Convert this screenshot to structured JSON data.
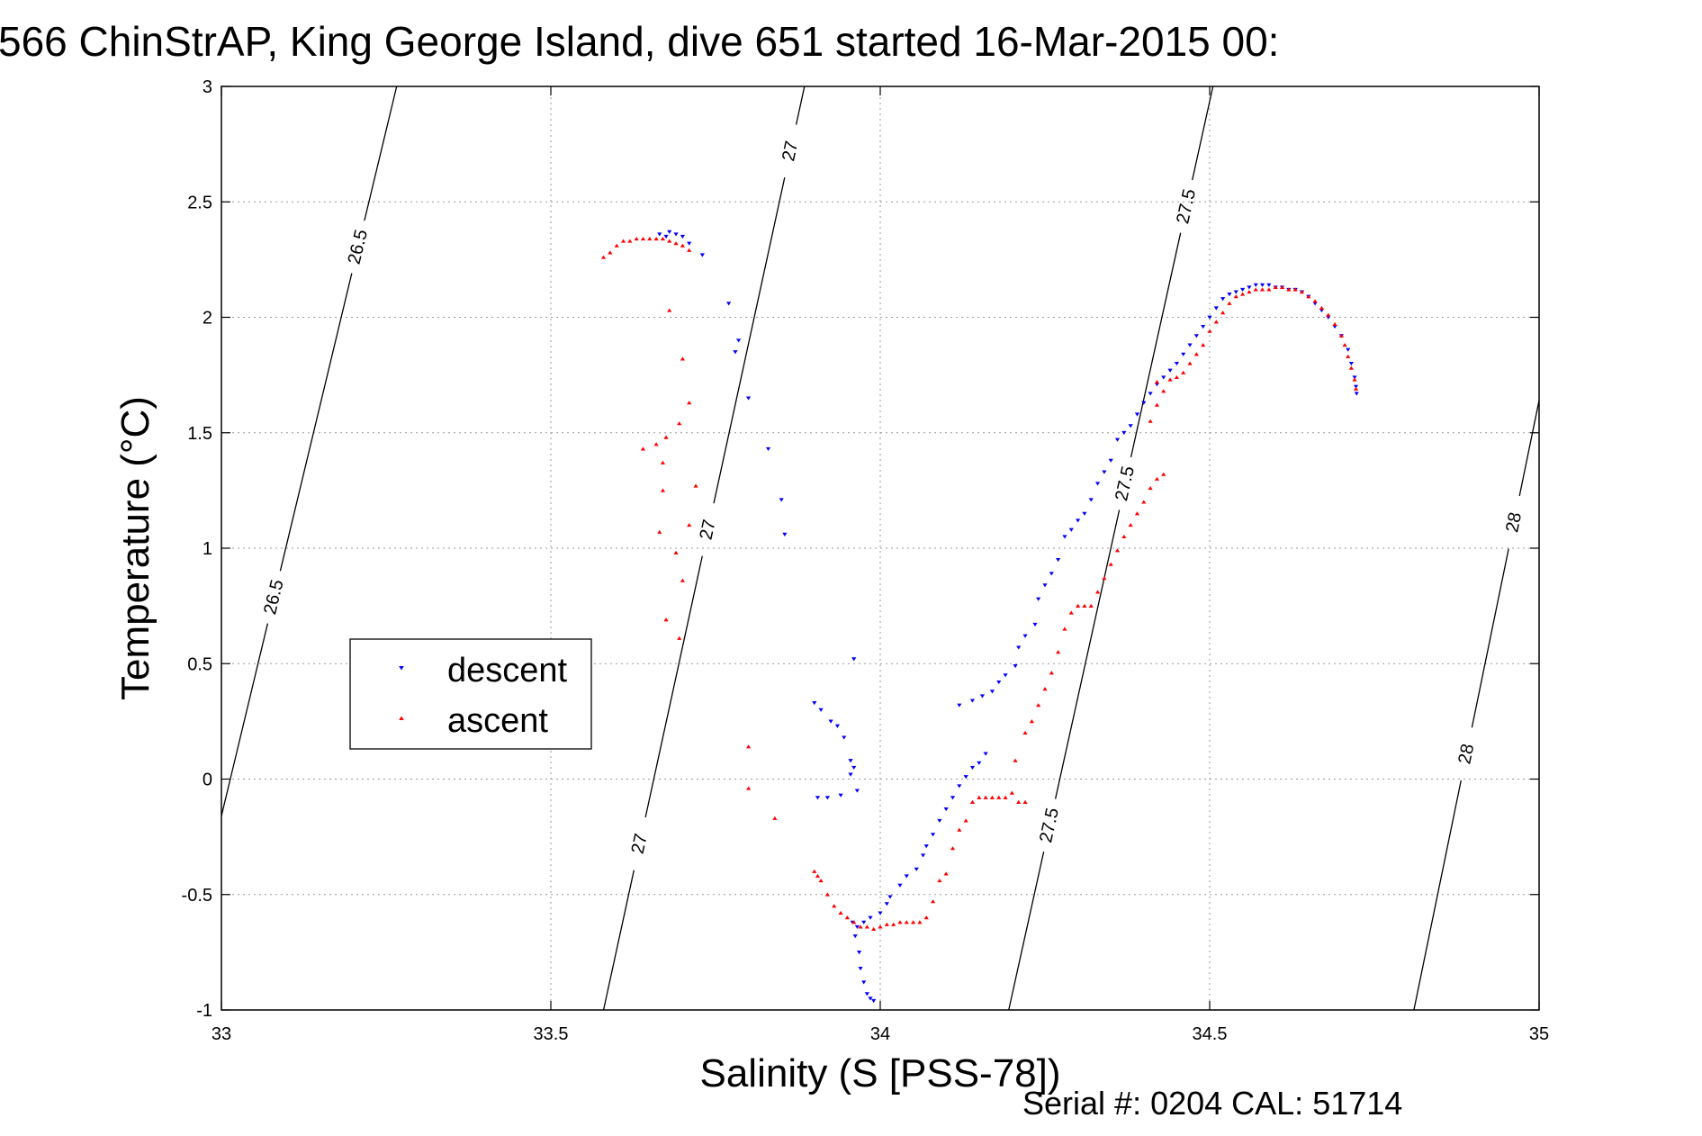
{
  "chart_data": {
    "type": "scatter",
    "title": "566 ChinStrAP, King George Island, dive 651 started 16-Mar-2015 00:",
    "xlabel": "Salinity (S [PSS-78])",
    "ylabel": "Temperature (°C)",
    "xlim": [
      33,
      35
    ],
    "ylim": [
      -1,
      3
    ],
    "x_ticks": [
      "33",
      "33.5",
      "34",
      "34.5",
      "35"
    ],
    "y_ticks": [
      "-1",
      "-0.5",
      "0",
      "0.5",
      "1",
      "1.5",
      "2",
      "2.5",
      "3"
    ],
    "grid": true,
    "legend_position": "left",
    "footer": "Serial #: 0204  CAL: 51714",
    "isopycnals": [
      {
        "label": "26.5",
        "start": [
          33.0,
          -0.16
        ],
        "end": [
          33.266,
          3.0
        ]
      },
      {
        "label": "27",
        "start": [
          33.58,
          -1.0
        ],
        "end": [
          33.885,
          3.0
        ]
      },
      {
        "label": "27.5",
        "start": [
          34.195,
          -1.0
        ],
        "end": [
          34.505,
          3.0
        ]
      },
      {
        "label": "28",
        "start": [
          34.81,
          -1.0
        ],
        "end": [
          35.0,
          1.64
        ]
      }
    ],
    "series": [
      {
        "name": "descent",
        "color": "#0000ff",
        "marker": "triangle-down",
        "points": [
          [
            33.99,
            -0.96
          ],
          [
            33.985,
            -0.95
          ],
          [
            33.98,
            -0.93
          ],
          [
            33.975,
            -0.88
          ],
          [
            33.97,
            -0.82
          ],
          [
            33.968,
            -0.75
          ],
          [
            33.962,
            -0.68
          ],
          [
            33.958,
            -0.62
          ],
          [
            33.965,
            -0.64
          ],
          [
            33.975,
            -0.62
          ],
          [
            33.985,
            -0.6
          ],
          [
            34.0,
            -0.58
          ],
          [
            34.01,
            -0.54
          ],
          [
            34.015,
            -0.51
          ],
          [
            34.03,
            -0.46
          ],
          [
            34.04,
            -0.42
          ],
          [
            34.055,
            -0.39
          ],
          [
            34.065,
            -0.33
          ],
          [
            34.07,
            -0.29
          ],
          [
            34.08,
            -0.24
          ],
          [
            34.09,
            -0.18
          ],
          [
            34.1,
            -0.13
          ],
          [
            34.11,
            -0.08
          ],
          [
            34.12,
            -0.03
          ],
          [
            34.13,
            0.01
          ],
          [
            34.14,
            0.05
          ],
          [
            34.15,
            0.07
          ],
          [
            34.16,
            0.11
          ],
          [
            34.12,
            0.32
          ],
          [
            34.14,
            0.34
          ],
          [
            34.155,
            0.36
          ],
          [
            34.17,
            0.38
          ],
          [
            34.18,
            0.42
          ],
          [
            34.19,
            0.45
          ],
          [
            34.205,
            0.49
          ],
          [
            34.21,
            0.57
          ],
          [
            34.22,
            0.62
          ],
          [
            34.235,
            0.67
          ],
          [
            34.24,
            0.78
          ],
          [
            34.25,
            0.84
          ],
          [
            34.26,
            0.89
          ],
          [
            34.27,
            0.95
          ],
          [
            34.28,
            1.05
          ],
          [
            34.29,
            1.08
          ],
          [
            34.3,
            1.12
          ],
          [
            34.31,
            1.15
          ],
          [
            34.32,
            1.21
          ],
          [
            34.33,
            1.28
          ],
          [
            34.34,
            1.33
          ],
          [
            34.35,
            1.38
          ],
          [
            34.36,
            1.47
          ],
          [
            34.37,
            1.5
          ],
          [
            34.38,
            1.53
          ],
          [
            34.39,
            1.58
          ],
          [
            34.4,
            1.63
          ],
          [
            34.41,
            1.67
          ],
          [
            34.42,
            1.71
          ],
          [
            34.43,
            1.74
          ],
          [
            34.44,
            1.77
          ],
          [
            34.45,
            1.8
          ],
          [
            34.46,
            1.84
          ],
          [
            34.47,
            1.88
          ],
          [
            34.48,
            1.92
          ],
          [
            34.49,
            1.96
          ],
          [
            34.5,
            2.0
          ],
          [
            34.51,
            2.04
          ],
          [
            34.52,
            2.08
          ],
          [
            34.53,
            2.1
          ],
          [
            34.54,
            2.11
          ],
          [
            34.55,
            2.12
          ],
          [
            34.56,
            2.13
          ],
          [
            34.57,
            2.14
          ],
          [
            34.58,
            2.14
          ],
          [
            34.59,
            2.14
          ],
          [
            34.6,
            2.13
          ],
          [
            34.61,
            2.13
          ],
          [
            34.62,
            2.12
          ],
          [
            34.63,
            2.12
          ],
          [
            34.64,
            2.11
          ],
          [
            34.65,
            2.09
          ],
          [
            34.66,
            2.06
          ],
          [
            34.67,
            2.03
          ],
          [
            34.68,
            2.0
          ],
          [
            34.69,
            1.96
          ],
          [
            34.7,
            1.92
          ],
          [
            34.71,
            1.86
          ],
          [
            34.715,
            1.8
          ],
          [
            34.72,
            1.74
          ],
          [
            34.722,
            1.7
          ],
          [
            34.723,
            1.67
          ],
          [
            33.71,
            2.32
          ],
          [
            33.7,
            2.35
          ],
          [
            33.69,
            2.36
          ],
          [
            33.68,
            2.37
          ],
          [
            33.675,
            2.35
          ],
          [
            33.665,
            2.36
          ],
          [
            33.73,
            2.27
          ],
          [
            33.77,
            2.06
          ],
          [
            33.785,
            1.9
          ],
          [
            33.78,
            1.85
          ],
          [
            33.8,
            1.65
          ],
          [
            33.83,
            1.43
          ],
          [
            33.85,
            1.21
          ],
          [
            33.855,
            1.06
          ],
          [
            33.96,
            0.52
          ],
          [
            33.9,
            0.33
          ],
          [
            33.91,
            0.3
          ],
          [
            33.925,
            0.25
          ],
          [
            33.935,
            0.23
          ],
          [
            33.945,
            0.18
          ],
          [
            33.955,
            0.08
          ],
          [
            33.96,
            0.05
          ],
          [
            33.965,
            -0.05
          ],
          [
            33.94,
            -0.07
          ],
          [
            33.92,
            -0.08
          ],
          [
            33.905,
            -0.08
          ],
          [
            33.955,
            0.02
          ]
        ]
      },
      {
        "name": "ascent",
        "color": "#ff0000",
        "marker": "triangle-up",
        "points": [
          [
            33.58,
            2.26
          ],
          [
            33.59,
            2.28
          ],
          [
            33.6,
            2.31
          ],
          [
            33.61,
            2.33
          ],
          [
            33.62,
            2.33
          ],
          [
            33.63,
            2.34
          ],
          [
            33.64,
            2.34
          ],
          [
            33.65,
            2.34
          ],
          [
            33.66,
            2.34
          ],
          [
            33.67,
            2.34
          ],
          [
            33.68,
            2.33
          ],
          [
            33.69,
            2.32
          ],
          [
            33.7,
            2.31
          ],
          [
            33.71,
            2.29
          ],
          [
            33.64,
            1.43
          ],
          [
            33.66,
            1.45
          ],
          [
            33.67,
            1.37
          ],
          [
            33.675,
            1.48
          ],
          [
            33.68,
            2.03
          ],
          [
            33.695,
            1.54
          ],
          [
            33.7,
            1.82
          ],
          [
            33.71,
            1.63
          ],
          [
            33.72,
            1.27
          ],
          [
            33.71,
            1.1
          ],
          [
            33.67,
            1.25
          ],
          [
            33.665,
            1.07
          ],
          [
            33.69,
            0.98
          ],
          [
            33.7,
            0.86
          ],
          [
            33.675,
            0.69
          ],
          [
            33.695,
            0.61
          ],
          [
            33.8,
            0.14
          ],
          [
            33.8,
            -0.04
          ],
          [
            33.84,
            -0.17
          ],
          [
            33.9,
            -0.4
          ],
          [
            33.905,
            -0.42
          ],
          [
            33.91,
            -0.44
          ],
          [
            33.92,
            -0.5
          ],
          [
            33.93,
            -0.55
          ],
          [
            33.94,
            -0.58
          ],
          [
            33.95,
            -0.6
          ],
          [
            33.96,
            -0.62
          ],
          [
            33.97,
            -0.64
          ],
          [
            33.98,
            -0.64
          ],
          [
            33.99,
            -0.65
          ],
          [
            34.0,
            -0.64
          ],
          [
            34.01,
            -0.63
          ],
          [
            34.02,
            -0.63
          ],
          [
            34.03,
            -0.62
          ],
          [
            34.04,
            -0.62
          ],
          [
            34.05,
            -0.62
          ],
          [
            34.06,
            -0.62
          ],
          [
            34.07,
            -0.6
          ],
          [
            34.08,
            -0.53
          ],
          [
            34.09,
            -0.44
          ],
          [
            34.1,
            -0.41
          ],
          [
            34.11,
            -0.3
          ],
          [
            34.12,
            -0.22
          ],
          [
            34.13,
            -0.18
          ],
          [
            34.14,
            -0.1
          ],
          [
            34.15,
            -0.08
          ],
          [
            34.16,
            -0.08
          ],
          [
            34.17,
            -0.08
          ],
          [
            34.18,
            -0.08
          ],
          [
            34.19,
            -0.08
          ],
          [
            34.2,
            -0.06
          ],
          [
            34.21,
            -0.1
          ],
          [
            34.22,
            -0.1
          ],
          [
            34.205,
            0.08
          ],
          [
            34.22,
            0.2
          ],
          [
            34.23,
            0.25
          ],
          [
            34.24,
            0.32
          ],
          [
            34.25,
            0.39
          ],
          [
            34.26,
            0.46
          ],
          [
            34.27,
            0.55
          ],
          [
            34.28,
            0.65
          ],
          [
            34.29,
            0.72
          ],
          [
            34.3,
            0.75
          ],
          [
            34.31,
            0.75
          ],
          [
            34.32,
            0.75
          ],
          [
            34.33,
            0.81
          ],
          [
            34.34,
            0.87
          ],
          [
            34.35,
            0.93
          ],
          [
            34.36,
            0.99
          ],
          [
            34.37,
            1.05
          ],
          [
            34.38,
            1.1
          ],
          [
            34.39,
            1.15
          ],
          [
            34.4,
            1.2
          ],
          [
            34.41,
            1.26
          ],
          [
            34.42,
            1.3
          ],
          [
            34.43,
            1.32
          ],
          [
            34.41,
            1.55
          ],
          [
            34.42,
            1.62
          ],
          [
            34.43,
            1.68
          ],
          [
            34.42,
            1.72
          ],
          [
            34.44,
            1.73
          ],
          [
            34.45,
            1.74
          ],
          [
            34.46,
            1.76
          ],
          [
            34.47,
            1.8
          ],
          [
            34.48,
            1.84
          ],
          [
            34.49,
            1.88
          ],
          [
            34.5,
            1.94
          ],
          [
            34.51,
            1.98
          ],
          [
            34.52,
            2.02
          ],
          [
            34.53,
            2.06
          ],
          [
            34.54,
            2.09
          ],
          [
            34.55,
            2.1
          ],
          [
            34.56,
            2.11
          ],
          [
            34.57,
            2.12
          ],
          [
            34.58,
            2.12
          ],
          [
            34.59,
            2.12
          ],
          [
            34.6,
            2.13
          ],
          [
            34.61,
            2.13
          ],
          [
            34.62,
            2.12
          ],
          [
            34.63,
            2.12
          ],
          [
            34.64,
            2.11
          ],
          [
            34.65,
            2.09
          ],
          [
            34.66,
            2.07
          ],
          [
            34.67,
            2.04
          ],
          [
            34.68,
            2.01
          ],
          [
            34.69,
            1.97
          ],
          [
            34.7,
            1.92
          ],
          [
            34.705,
            1.88
          ],
          [
            34.71,
            1.83
          ],
          [
            34.715,
            1.78
          ],
          [
            34.72,
            1.73
          ],
          [
            34.722,
            1.69
          ]
        ]
      }
    ]
  }
}
